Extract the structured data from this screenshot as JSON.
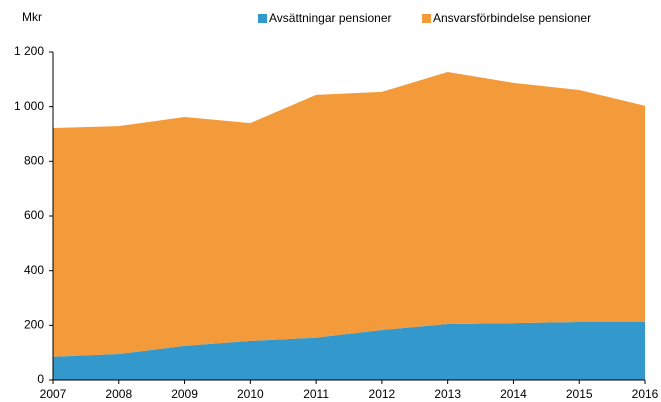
{
  "chart_data": {
    "type": "stacked_area",
    "y_unit_label": "Mkr",
    "x": [
      2007,
      2008,
      2009,
      2010,
      2011,
      2012,
      2013,
      2014,
      2015,
      2016
    ],
    "series": [
      {
        "name": "Avsättningar pensioner",
        "color": "#3399cc",
        "values": [
          85,
          95,
          125,
          143,
          155,
          183,
          205,
          208,
          212,
          212
        ]
      },
      {
        "name": "Ansvarsförbindelse pensioner",
        "color": "#f39a3a",
        "values": [
          837,
          834,
          837,
          797,
          888,
          871,
          922,
          879,
          849,
          791
        ]
      }
    ],
    "xlim": [
      2007,
      2016
    ],
    "xticks": [
      2007,
      2008,
      2009,
      2010,
      2011,
      2012,
      2013,
      2014,
      2015,
      2016
    ],
    "ylim": [
      0,
      1200
    ],
    "yticks": [
      0,
      200,
      400,
      600,
      800,
      {
        "value": 1000,
        "label": "1 000"
      },
      {
        "value": 1200,
        "label": "1 200"
      }
    ],
    "legend": "top"
  }
}
